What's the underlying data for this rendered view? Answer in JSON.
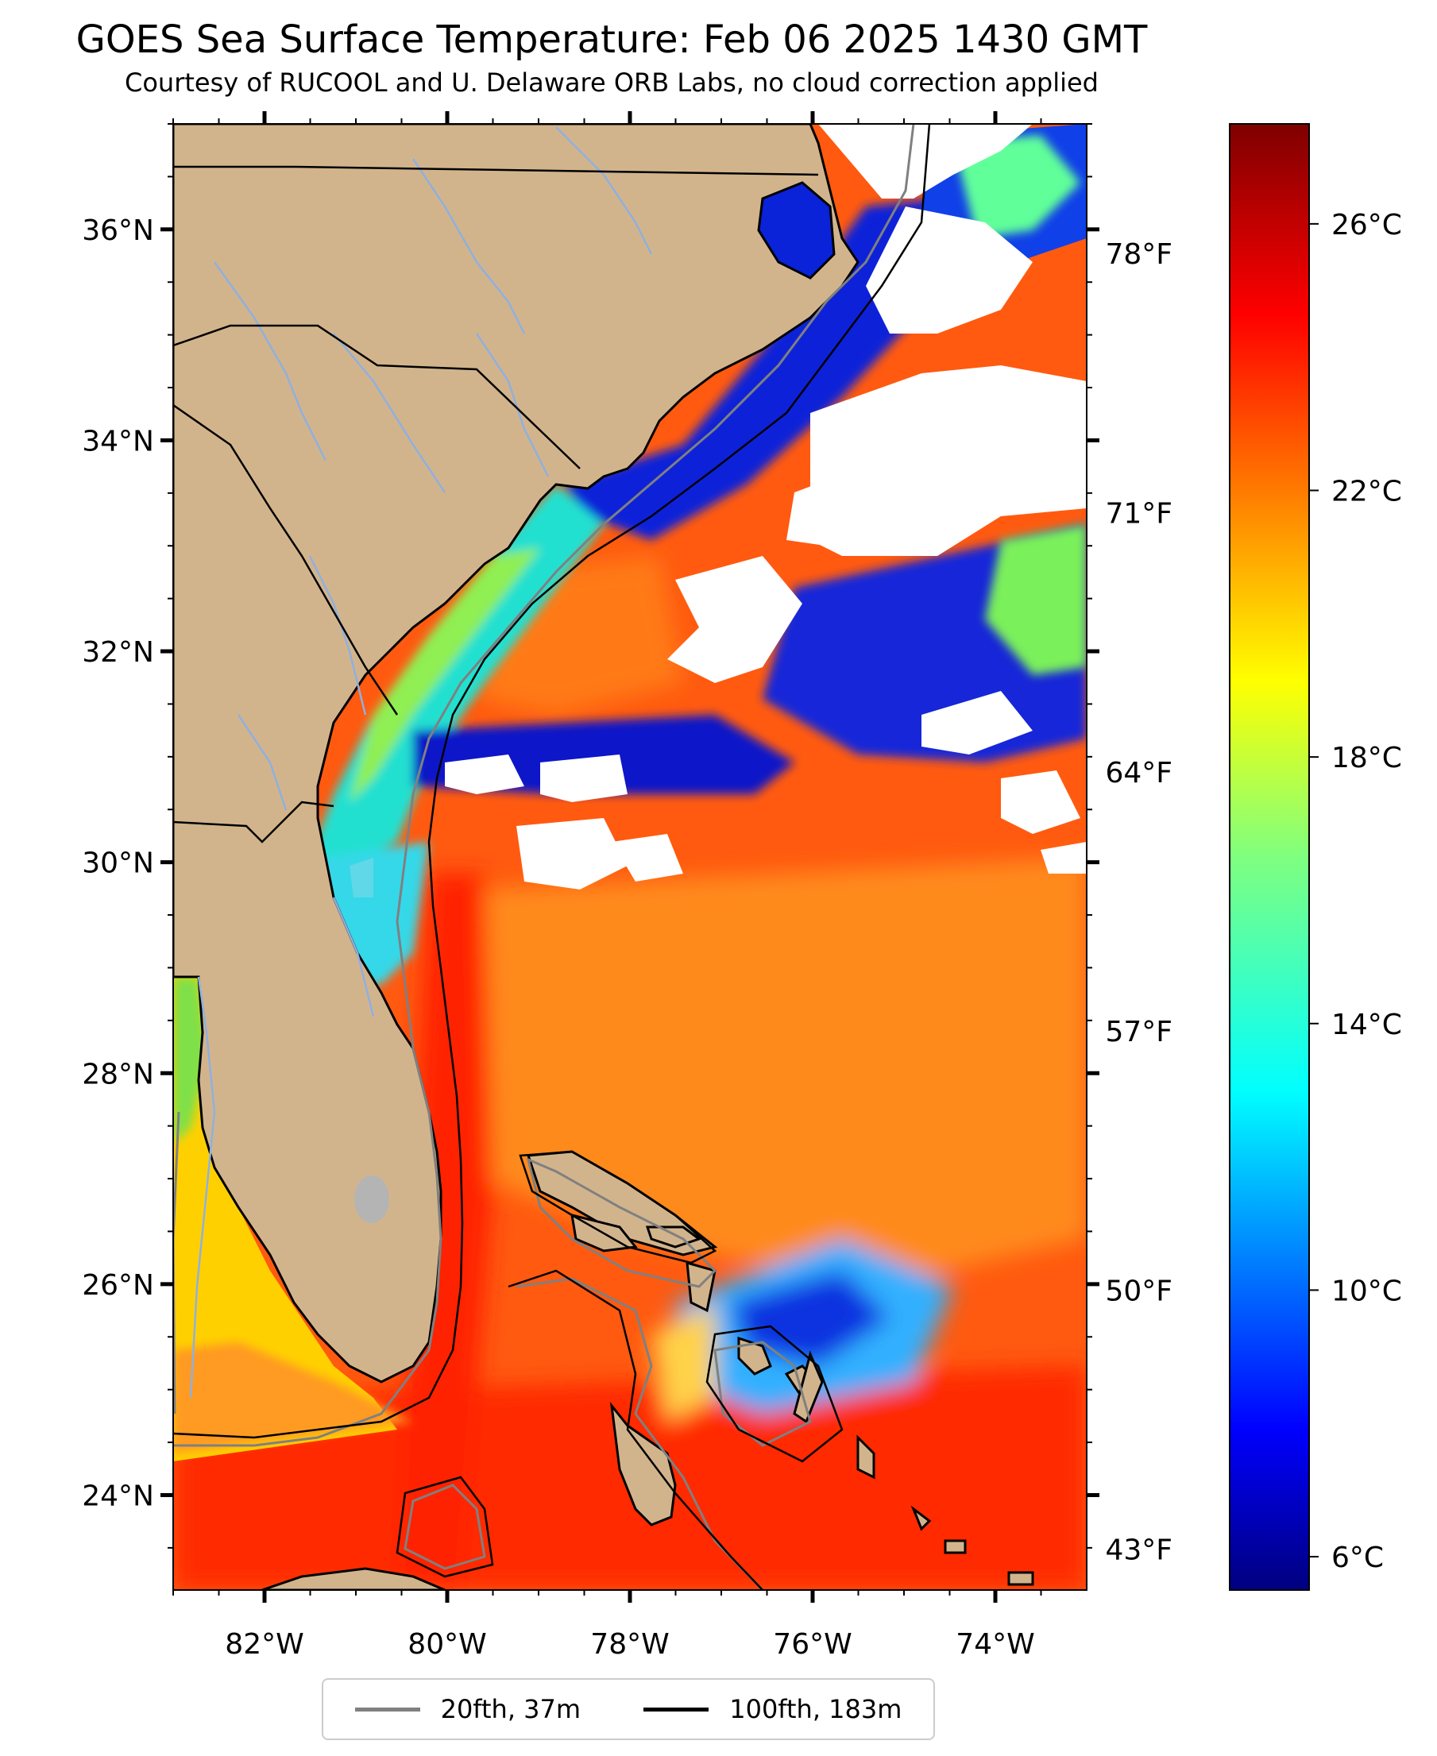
{
  "header": {
    "title": "GOES Sea Surface Temperature: Feb 06 2025 1430 GMT",
    "subtitle": "Courtesy of RUCOOL and U. Delaware ORB Labs, no cloud correction applied"
  },
  "map": {
    "extent": {
      "lon_min": -83,
      "lon_max": -73,
      "lat_min": 23.1,
      "lat_max": 37.0
    },
    "lat_ticks": [
      {
        "value": 24,
        "label": "24°N"
      },
      {
        "value": 26,
        "label": "26°N"
      },
      {
        "value": 28,
        "label": "28°N"
      },
      {
        "value": 30,
        "label": "30°N"
      },
      {
        "value": 32,
        "label": "32°N"
      },
      {
        "value": 34,
        "label": "34°N"
      },
      {
        "value": 36,
        "label": "36°N"
      }
    ],
    "lon_ticks": [
      {
        "value": -82,
        "label": "82°W"
      },
      {
        "value": -80,
        "label": "80°W"
      },
      {
        "value": -78,
        "label": "78°W"
      },
      {
        "value": -76,
        "label": "76°W"
      },
      {
        "value": -74,
        "label": "74°W"
      }
    ],
    "colors": {
      "land": "#d2b48c",
      "ocean_warm": "#ff3c0a",
      "ocean_cool": "#ff7d14",
      "shelf_cold": "#0011cc",
      "shelf_mid": "#27e8d7",
      "gulf": "#ffd200",
      "clouds": "#ffffff",
      "rivers": "#8fb0e0",
      "borders": "#000000"
    },
    "cloud_note": "white areas are unfilled cloud pixels"
  },
  "colorbar": {
    "vmin_c": 5.5,
    "vmax_c": 27.5,
    "c_ticks": [
      {
        "value": 6,
        "label": "6°C"
      },
      {
        "value": 10,
        "label": "10°C"
      },
      {
        "value": 14,
        "label": "14°C"
      },
      {
        "value": 18,
        "label": "18°C"
      },
      {
        "value": 22,
        "label": "22°C"
      },
      {
        "value": 26,
        "label": "26°C"
      }
    ],
    "f_ticks": [
      {
        "value": 43,
        "label": "43°F"
      },
      {
        "value": 50,
        "label": "50°F"
      },
      {
        "value": 57,
        "label": "57°F"
      },
      {
        "value": 64,
        "label": "64°F"
      },
      {
        "value": 71,
        "label": "71°F"
      },
      {
        "value": 78,
        "label": "78°F"
      }
    ]
  },
  "legend": {
    "items": [
      {
        "label": "20fth, 37m",
        "color": "#808080"
      },
      {
        "label": "100fth, 183m",
        "color": "#000000"
      }
    ]
  }
}
